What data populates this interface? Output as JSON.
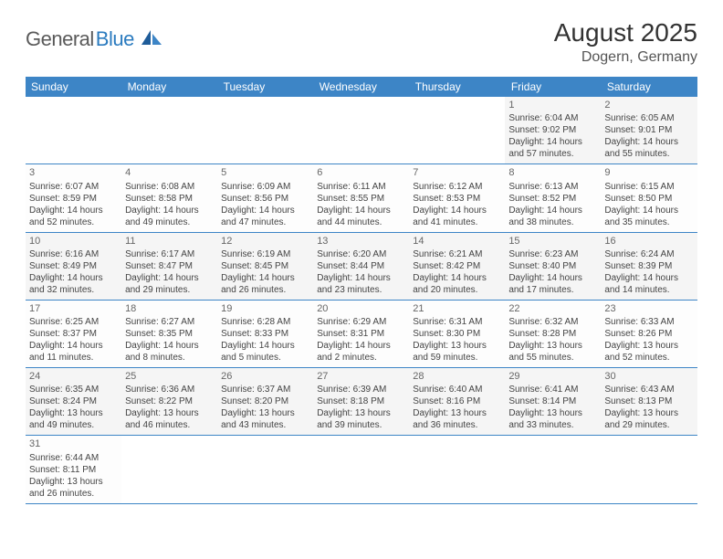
{
  "logo": {
    "text_main": "General",
    "text_blue": "Blue"
  },
  "title": "August 2025",
  "location": "Dogern, Germany",
  "header_bg": "#3d85c6",
  "day_headers": [
    "Sunday",
    "Monday",
    "Tuesday",
    "Wednesday",
    "Thursday",
    "Friday",
    "Saturday"
  ],
  "weeks": [
    [
      null,
      null,
      null,
      null,
      null,
      {
        "n": "1",
        "sr": "Sunrise: 6:04 AM",
        "ss": "Sunset: 9:02 PM",
        "dl1": "Daylight: 14 hours",
        "dl2": "and 57 minutes."
      },
      {
        "n": "2",
        "sr": "Sunrise: 6:05 AM",
        "ss": "Sunset: 9:01 PM",
        "dl1": "Daylight: 14 hours",
        "dl2": "and 55 minutes."
      }
    ],
    [
      {
        "n": "3",
        "sr": "Sunrise: 6:07 AM",
        "ss": "Sunset: 8:59 PM",
        "dl1": "Daylight: 14 hours",
        "dl2": "and 52 minutes."
      },
      {
        "n": "4",
        "sr": "Sunrise: 6:08 AM",
        "ss": "Sunset: 8:58 PM",
        "dl1": "Daylight: 14 hours",
        "dl2": "and 49 minutes."
      },
      {
        "n": "5",
        "sr": "Sunrise: 6:09 AM",
        "ss": "Sunset: 8:56 PM",
        "dl1": "Daylight: 14 hours",
        "dl2": "and 47 minutes."
      },
      {
        "n": "6",
        "sr": "Sunrise: 6:11 AM",
        "ss": "Sunset: 8:55 PM",
        "dl1": "Daylight: 14 hours",
        "dl2": "and 44 minutes."
      },
      {
        "n": "7",
        "sr": "Sunrise: 6:12 AM",
        "ss": "Sunset: 8:53 PM",
        "dl1": "Daylight: 14 hours",
        "dl2": "and 41 minutes."
      },
      {
        "n": "8",
        "sr": "Sunrise: 6:13 AM",
        "ss": "Sunset: 8:52 PM",
        "dl1": "Daylight: 14 hours",
        "dl2": "and 38 minutes."
      },
      {
        "n": "9",
        "sr": "Sunrise: 6:15 AM",
        "ss": "Sunset: 8:50 PM",
        "dl1": "Daylight: 14 hours",
        "dl2": "and 35 minutes."
      }
    ],
    [
      {
        "n": "10",
        "sr": "Sunrise: 6:16 AM",
        "ss": "Sunset: 8:49 PM",
        "dl1": "Daylight: 14 hours",
        "dl2": "and 32 minutes."
      },
      {
        "n": "11",
        "sr": "Sunrise: 6:17 AM",
        "ss": "Sunset: 8:47 PM",
        "dl1": "Daylight: 14 hours",
        "dl2": "and 29 minutes."
      },
      {
        "n": "12",
        "sr": "Sunrise: 6:19 AM",
        "ss": "Sunset: 8:45 PM",
        "dl1": "Daylight: 14 hours",
        "dl2": "and 26 minutes."
      },
      {
        "n": "13",
        "sr": "Sunrise: 6:20 AM",
        "ss": "Sunset: 8:44 PM",
        "dl1": "Daylight: 14 hours",
        "dl2": "and 23 minutes."
      },
      {
        "n": "14",
        "sr": "Sunrise: 6:21 AM",
        "ss": "Sunset: 8:42 PM",
        "dl1": "Daylight: 14 hours",
        "dl2": "and 20 minutes."
      },
      {
        "n": "15",
        "sr": "Sunrise: 6:23 AM",
        "ss": "Sunset: 8:40 PM",
        "dl1": "Daylight: 14 hours",
        "dl2": "and 17 minutes."
      },
      {
        "n": "16",
        "sr": "Sunrise: 6:24 AM",
        "ss": "Sunset: 8:39 PM",
        "dl1": "Daylight: 14 hours",
        "dl2": "and 14 minutes."
      }
    ],
    [
      {
        "n": "17",
        "sr": "Sunrise: 6:25 AM",
        "ss": "Sunset: 8:37 PM",
        "dl1": "Daylight: 14 hours",
        "dl2": "and 11 minutes."
      },
      {
        "n": "18",
        "sr": "Sunrise: 6:27 AM",
        "ss": "Sunset: 8:35 PM",
        "dl1": "Daylight: 14 hours",
        "dl2": "and 8 minutes."
      },
      {
        "n": "19",
        "sr": "Sunrise: 6:28 AM",
        "ss": "Sunset: 8:33 PM",
        "dl1": "Daylight: 14 hours",
        "dl2": "and 5 minutes."
      },
      {
        "n": "20",
        "sr": "Sunrise: 6:29 AM",
        "ss": "Sunset: 8:31 PM",
        "dl1": "Daylight: 14 hours",
        "dl2": "and 2 minutes."
      },
      {
        "n": "21",
        "sr": "Sunrise: 6:31 AM",
        "ss": "Sunset: 8:30 PM",
        "dl1": "Daylight: 13 hours",
        "dl2": "and 59 minutes."
      },
      {
        "n": "22",
        "sr": "Sunrise: 6:32 AM",
        "ss": "Sunset: 8:28 PM",
        "dl1": "Daylight: 13 hours",
        "dl2": "and 55 minutes."
      },
      {
        "n": "23",
        "sr": "Sunrise: 6:33 AM",
        "ss": "Sunset: 8:26 PM",
        "dl1": "Daylight: 13 hours",
        "dl2": "and 52 minutes."
      }
    ],
    [
      {
        "n": "24",
        "sr": "Sunrise: 6:35 AM",
        "ss": "Sunset: 8:24 PM",
        "dl1": "Daylight: 13 hours",
        "dl2": "and 49 minutes."
      },
      {
        "n": "25",
        "sr": "Sunrise: 6:36 AM",
        "ss": "Sunset: 8:22 PM",
        "dl1": "Daylight: 13 hours",
        "dl2": "and 46 minutes."
      },
      {
        "n": "26",
        "sr": "Sunrise: 6:37 AM",
        "ss": "Sunset: 8:20 PM",
        "dl1": "Daylight: 13 hours",
        "dl2": "and 43 minutes."
      },
      {
        "n": "27",
        "sr": "Sunrise: 6:39 AM",
        "ss": "Sunset: 8:18 PM",
        "dl1": "Daylight: 13 hours",
        "dl2": "and 39 minutes."
      },
      {
        "n": "28",
        "sr": "Sunrise: 6:40 AM",
        "ss": "Sunset: 8:16 PM",
        "dl1": "Daylight: 13 hours",
        "dl2": "and 36 minutes."
      },
      {
        "n": "29",
        "sr": "Sunrise: 6:41 AM",
        "ss": "Sunset: 8:14 PM",
        "dl1": "Daylight: 13 hours",
        "dl2": "and 33 minutes."
      },
      {
        "n": "30",
        "sr": "Sunrise: 6:43 AM",
        "ss": "Sunset: 8:13 PM",
        "dl1": "Daylight: 13 hours",
        "dl2": "and 29 minutes."
      }
    ],
    [
      {
        "n": "31",
        "sr": "Sunrise: 6:44 AM",
        "ss": "Sunset: 8:11 PM",
        "dl1": "Daylight: 13 hours",
        "dl2": "and 26 minutes."
      },
      null,
      null,
      null,
      null,
      null,
      null
    ]
  ]
}
